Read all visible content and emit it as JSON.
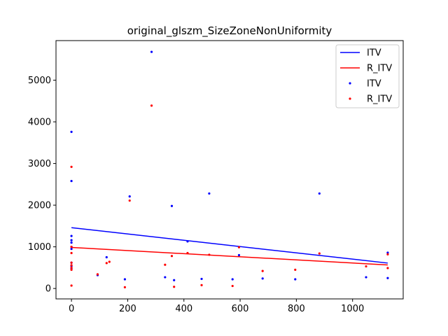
{
  "chart_data": {
    "type": "scatter",
    "title": "original_glszm_SizeZoneNonUniformity",
    "xlabel": "",
    "ylabel": "",
    "xlim": [
      -55,
      1180
    ],
    "ylim": [
      -250,
      5950
    ],
    "xticks": [
      0,
      200,
      400,
      600,
      800,
      1000
    ],
    "yticks": [
      0,
      1000,
      2000,
      3000,
      4000,
      5000
    ],
    "grid": false,
    "legend_position": "top-right",
    "series": [
      {
        "name": "ITV",
        "kind": "line",
        "color": "#0000ff",
        "x": [
          0,
          1125
        ],
        "y": [
          1460,
          610
        ]
      },
      {
        "name": "R_ITV",
        "kind": "line",
        "color": "#ff0000",
        "x": [
          0,
          1125
        ],
        "y": [
          985,
          565
        ]
      },
      {
        "name": "ITV",
        "kind": "scatter",
        "color": "#0000ff",
        "x": [
          0,
          0,
          0,
          0,
          0,
          0,
          0,
          0,
          0,
          0,
          93,
          125,
          190,
          207,
          285,
          333,
          357,
          365,
          413,
          463,
          490,
          573,
          596,
          680,
          796,
          882,
          1048,
          1125,
          1125
        ],
        "y": [
          3760,
          2580,
          1260,
          1160,
          1100,
          1000,
          620,
          540,
          480,
          950,
          320,
          750,
          220,
          2210,
          5680,
          270,
          1980,
          200,
          1130,
          230,
          2280,
          220,
          800,
          240,
          220,
          2280,
          270,
          860,
          250
        ]
      },
      {
        "name": "R_ITV",
        "kind": "scatter",
        "color": "#ff0000",
        "x": [
          0,
          0,
          0,
          0,
          0,
          0,
          0,
          0,
          93,
          125,
          135,
          190,
          207,
          285,
          333,
          357,
          365,
          413,
          463,
          490,
          573,
          596,
          680,
          796,
          882,
          1048,
          1125,
          1125
        ],
        "y": [
          2920,
          1000,
          850,
          620,
          560,
          500,
          450,
          70,
          340,
          610,
          640,
          30,
          2110,
          4390,
          570,
          780,
          40,
          850,
          80,
          810,
          60,
          990,
          420,
          450,
          840,
          530,
          820,
          490
        ]
      }
    ],
    "legend": [
      {
        "label": "ITV",
        "marker": "line",
        "color": "#0000ff"
      },
      {
        "label": "R_ITV",
        "marker": "line",
        "color": "#ff0000"
      },
      {
        "label": "ITV",
        "marker": "point",
        "color": "#0000ff"
      },
      {
        "label": "R_ITV",
        "marker": "point",
        "color": "#ff0000"
      }
    ]
  }
}
